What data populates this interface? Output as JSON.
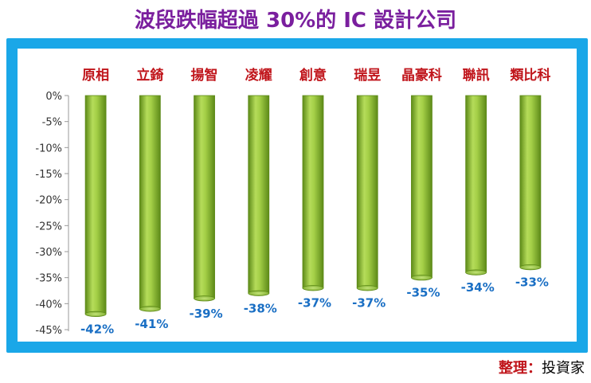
{
  "title": "波段跌幅超過 30%的 IC 設計公司",
  "source": {
    "label": "整理：",
    "value": "投資家"
  },
  "colors": {
    "title": "#7a1f9e",
    "frame": "#1aa7e8",
    "category_label": "#c0151b",
    "value_label": "#1a6fc4",
    "bar_fill": "#93c13c",
    "bar_dark": "#5d8a18",
    "source_label": "#c0151b"
  },
  "chart_data": {
    "type": "bar",
    "categories": [
      "原相",
      "立錡",
      "揚智",
      "凌耀",
      "創意",
      "瑞昱",
      "晶豪科",
      "聯訊",
      "類比科"
    ],
    "values": [
      -42,
      -41,
      -39,
      -38,
      -37,
      -37,
      -35,
      -34,
      -33
    ],
    "value_labels": [
      "-42%",
      "-41%",
      "-39%",
      "-38%",
      "-37%",
      "-37%",
      "-35%",
      "-34%",
      "-33%"
    ],
    "ylim": [
      -45,
      0
    ],
    "yticks": [
      "0%",
      "-5%",
      "-10%",
      "-15%",
      "-20%",
      "-25%",
      "-30%",
      "-35%",
      "-40%",
      "-45%"
    ],
    "ytick_values": [
      0,
      -5,
      -10,
      -15,
      -20,
      -25,
      -30,
      -35,
      -40,
      -45
    ],
    "category_position": "top",
    "grid": false,
    "legend": "none"
  }
}
